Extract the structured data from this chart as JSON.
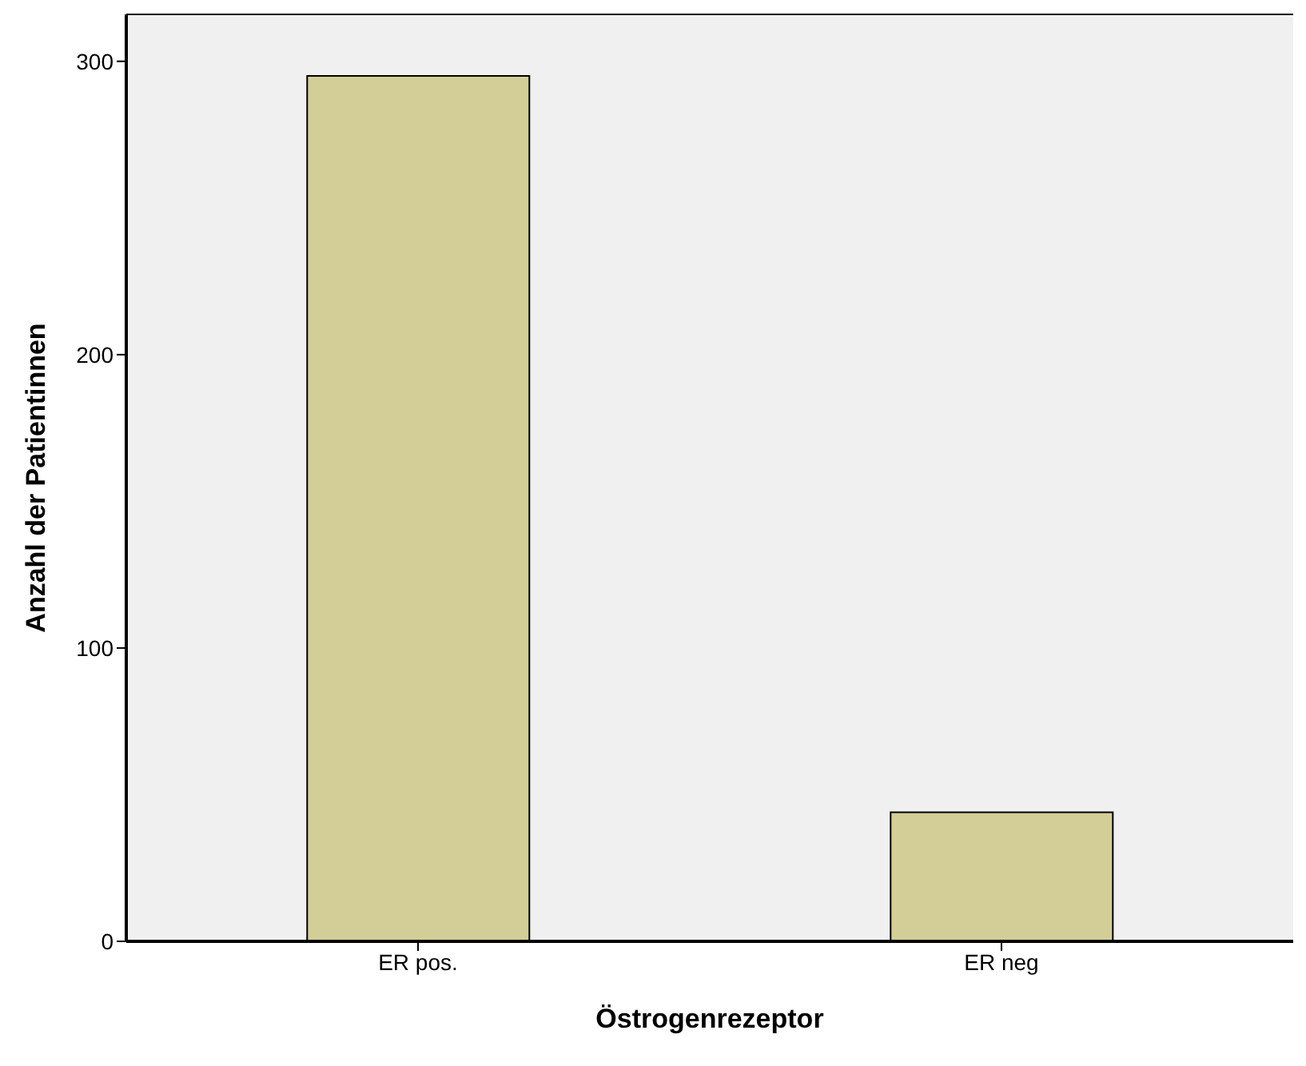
{
  "chart_data": {
    "type": "bar",
    "xlabel": "Östrogenrezeptor",
    "ylabel": "Anzahl der Patientinnen",
    "categories": [
      "ER pos.",
      "ER neg"
    ],
    "values": [
      295,
      44
    ],
    "color": "#d3ce98",
    "ylim": [
      0,
      316
    ],
    "yticks": [
      0,
      100,
      200,
      300
    ],
    "grid": false
  }
}
